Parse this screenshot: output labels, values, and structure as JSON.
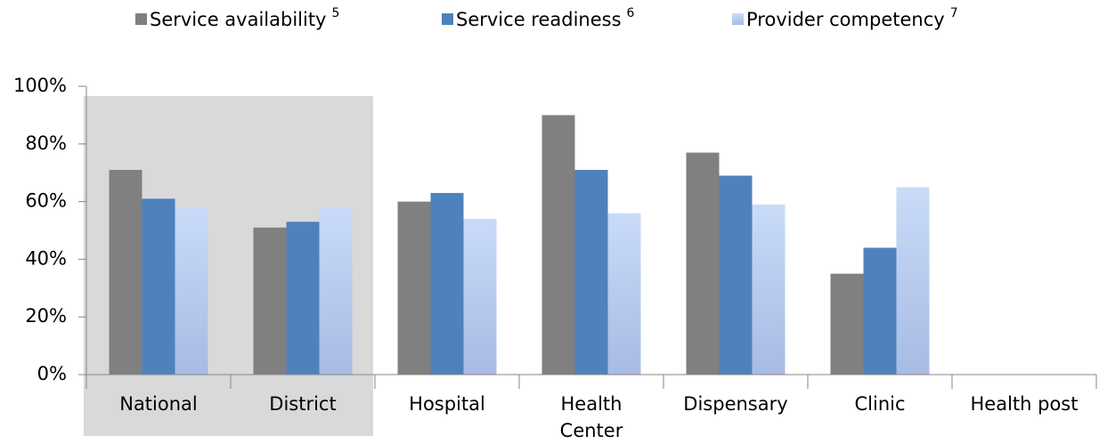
{
  "chart_data": {
    "type": "bar",
    "categories": [
      "National",
      "District",
      "Hospital",
      "Health Center",
      "Dispensary",
      "Clinic",
      "Health post"
    ],
    "series": [
      {
        "name": "Service availability",
        "footnote": "5",
        "color": "#808080",
        "values": [
          71,
          51,
          60,
          90,
          77,
          35,
          null
        ]
      },
      {
        "name": "Service readiness",
        "footnote": "6",
        "color": "#4f81bd",
        "values": [
          61,
          53,
          63,
          71,
          69,
          44,
          null
        ]
      },
      {
        "name": "Provider competency",
        "footnote": "7",
        "color": "#c6d9f7",
        "values": [
          58,
          58,
          54,
          56,
          59,
          65,
          null
        ]
      }
    ],
    "ylim": [
      0,
      100
    ],
    "yticks": [
      {
        "value": 0,
        "label": "0%"
      },
      {
        "value": 20,
        "label": "20%"
      },
      {
        "value": 40,
        "label": "40%"
      },
      {
        "value": 60,
        "label": "60%"
      },
      {
        "value": 80,
        "label": "80%"
      },
      {
        "value": 100,
        "label": "100%"
      }
    ],
    "legend": "top"
  }
}
